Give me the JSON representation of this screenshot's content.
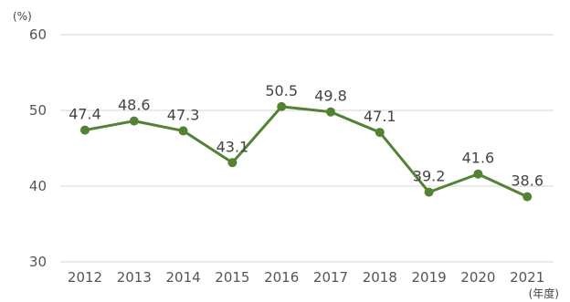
{
  "chart_data": {
    "type": "line",
    "title": "",
    "xlabel": "(年度)",
    "ylabel": "(%)",
    "categories": [
      "2012",
      "2013",
      "2014",
      "2015",
      "2016",
      "2017",
      "2018",
      "2019",
      "2020",
      "2021"
    ],
    "series": [
      {
        "values": [
          47.4,
          48.6,
          47.3,
          43.1,
          50.5,
          49.8,
          47.1,
          39.2,
          41.6,
          38.6
        ]
      }
    ],
    "ylim": [
      30,
      60
    ],
    "yticks": [
      "30",
      "40",
      "50",
      "60"
    ],
    "data_labels": [
      "47.4",
      "48.6",
      "47.3",
      "43.1",
      "50.5",
      "49.8",
      "47.1",
      "39.2",
      "41.6",
      "38.6"
    ],
    "grid": true,
    "legend": "none",
    "colors": {
      "series": "#548235",
      "grid": "#d6d6d6",
      "text": "#555555"
    }
  }
}
